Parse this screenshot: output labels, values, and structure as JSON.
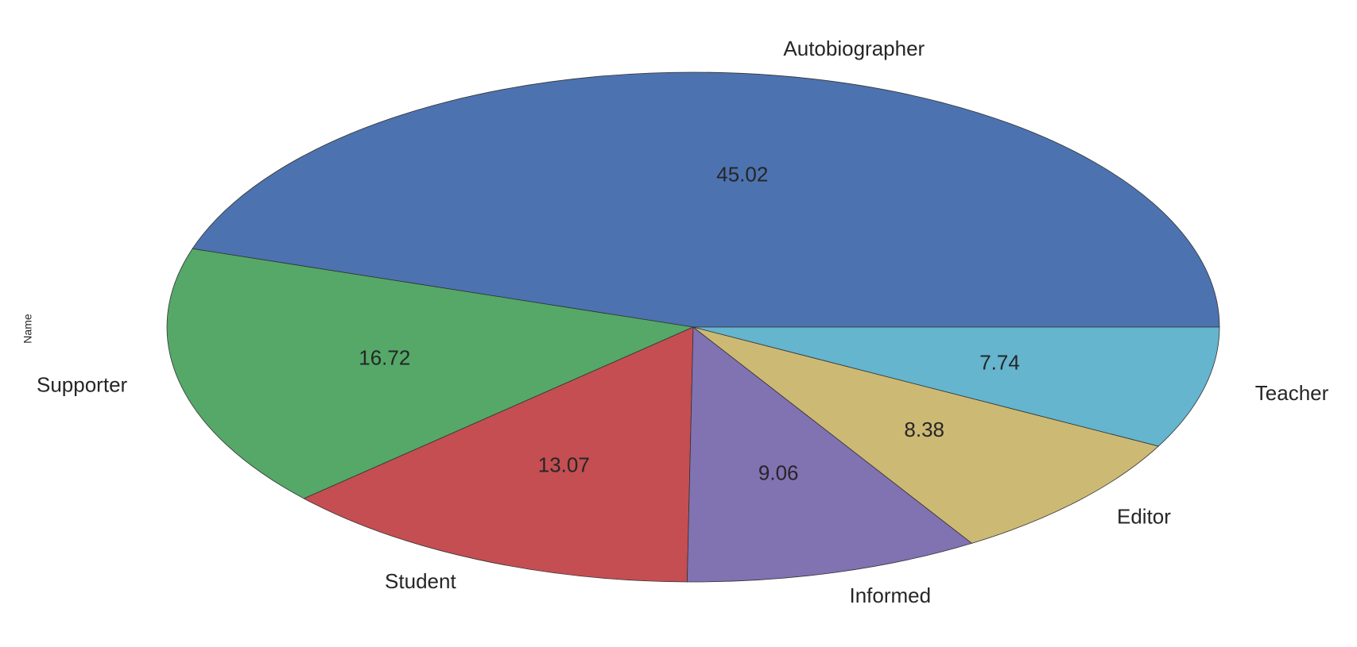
{
  "chart_data": {
    "type": "pie",
    "ylabel": "Name",
    "slices": [
      {
        "label": "Autobiographer",
        "value": 45.02,
        "color": "#4c72b0"
      },
      {
        "label": "Supporter",
        "value": 16.72,
        "color": "#55a868"
      },
      {
        "label": "Student",
        "value": 13.07,
        "color": "#c44e52"
      },
      {
        "label": "Informed",
        "value": 9.06,
        "color": "#8172b2"
      },
      {
        "label": "Editor",
        "value": 8.38,
        "color": "#ccb974"
      },
      {
        "label": "Teacher",
        "value": 7.74,
        "color": "#64b5cd"
      }
    ],
    "start_angle_deg": 0,
    "direction": "counterclockwise",
    "legend": "none"
  }
}
